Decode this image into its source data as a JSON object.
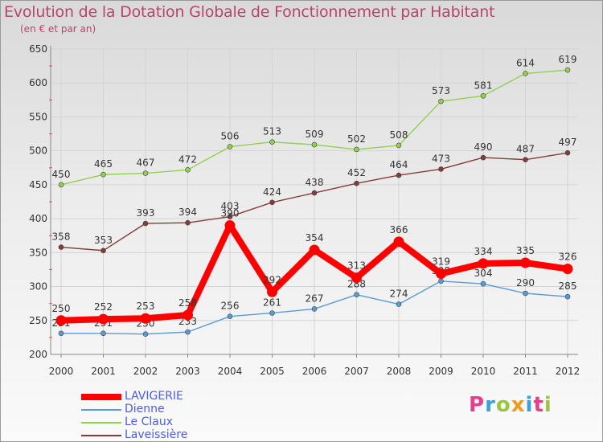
{
  "colors": {
    "title": "#b5466e",
    "axis_text": "#333333",
    "grid": "#d4d4d4",
    "legend_text": "#4b5de4"
  },
  "brand": {
    "text": "Proxiti",
    "letter_colors": [
      "#e63f8a",
      "#3aa0dc",
      "#9cc63f",
      "#f29a1d",
      "#3aa0dc",
      "#e63f8a",
      "#9cc63f"
    ]
  },
  "chart_data": {
    "type": "line",
    "title": "Evolution de la Dotation Globale de Fonctionnement par Habitant",
    "subtitle": "(en € et par an)",
    "x": [
      2000,
      2001,
      2002,
      2003,
      2004,
      2005,
      2006,
      2007,
      2008,
      2009,
      2010,
      2011,
      2012
    ],
    "ylim": [
      200,
      650
    ],
    "yticks": [
      200,
      250,
      300,
      350,
      400,
      450,
      500,
      550,
      600,
      650
    ],
    "grid": true,
    "legend_position": "bottom-left",
    "series": [
      {
        "name": "LAVIGERIE",
        "color": "#ff0000",
        "thick": true,
        "values": [
          250,
          252,
          253,
          258,
          390,
          292,
          354,
          313,
          366,
          319,
          334,
          335,
          326
        ]
      },
      {
        "name": "Dienne",
        "color": "#5b9bd5",
        "thick": false,
        "values": [
          231,
          231,
          230,
          233,
          256,
          261,
          267,
          288,
          274,
          308,
          304,
          290,
          285
        ]
      },
      {
        "name": "Le Claux",
        "color": "#92d050",
        "thick": false,
        "values": [
          450,
          465,
          467,
          472,
          506,
          513,
          509,
          502,
          508,
          573,
          581,
          614,
          619
        ]
      },
      {
        "name": "Laveissière",
        "color": "#843c39",
        "thick": false,
        "values": [
          358,
          353,
          393,
          394,
          403,
          424,
          438,
          452,
          464,
          473,
          490,
          487,
          497
        ]
      }
    ]
  }
}
